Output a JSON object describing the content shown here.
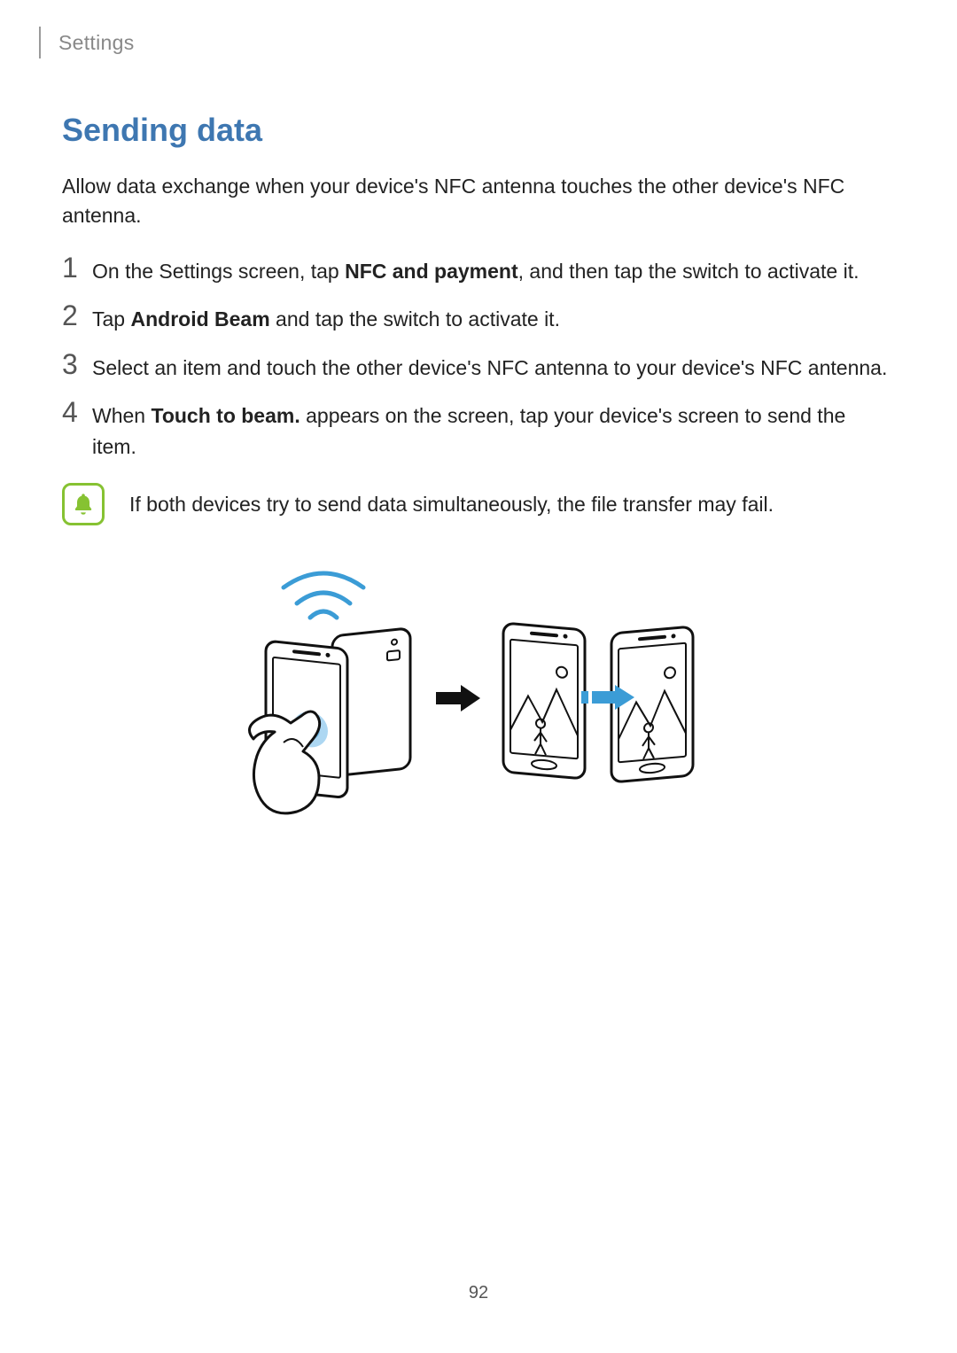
{
  "breadcrumb": "Settings",
  "heading": "Sending data",
  "intro": "Allow data exchange when your device's NFC antenna touches the other device's NFC antenna.",
  "steps": [
    {
      "num": "1",
      "pre": "On the Settings screen, tap ",
      "bold": "NFC and payment",
      "post": ", and then tap the switch to activate it."
    },
    {
      "num": "2",
      "pre": "Tap ",
      "bold": "Android Beam",
      "post": " and tap the switch to activate it."
    },
    {
      "num": "3",
      "pre": "Select an item and touch the other device's NFC antenna to your device's NFC antenna.",
      "bold": "",
      "post": ""
    },
    {
      "num": "4",
      "pre": "When ",
      "bold": "Touch to beam.",
      "post": " appears on the screen, tap your device's screen to send the item."
    }
  ],
  "note": "If both devices try to send data simultaneously, the file transfer may fail.",
  "page_number": "92",
  "colors": {
    "heading": "#3e77b1",
    "note_border": "#86c232",
    "wave_stroke": "#3b9cd6",
    "arrow_transfer": "#3b9cd6",
    "touch_glow": "#6ab7e8"
  }
}
